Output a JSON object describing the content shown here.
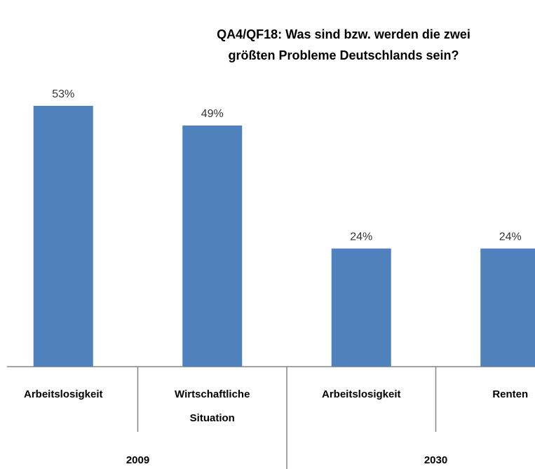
{
  "chart_data": {
    "type": "bar",
    "title": "QA4/QF18: Was sind bzw. werden die zwei größten Probleme Deutschlands sein?",
    "categories": [
      "Arbeitslosigkeit",
      "Wirtschaftliche Situation",
      "Arbeitslosigkeit",
      "Renten"
    ],
    "groups": [
      "2009",
      "2030"
    ],
    "values": [
      53,
      49,
      24,
      24
    ],
    "value_labels": [
      "53%",
      "49%",
      "24%",
      "24%"
    ],
    "color": "#4f81bd"
  }
}
